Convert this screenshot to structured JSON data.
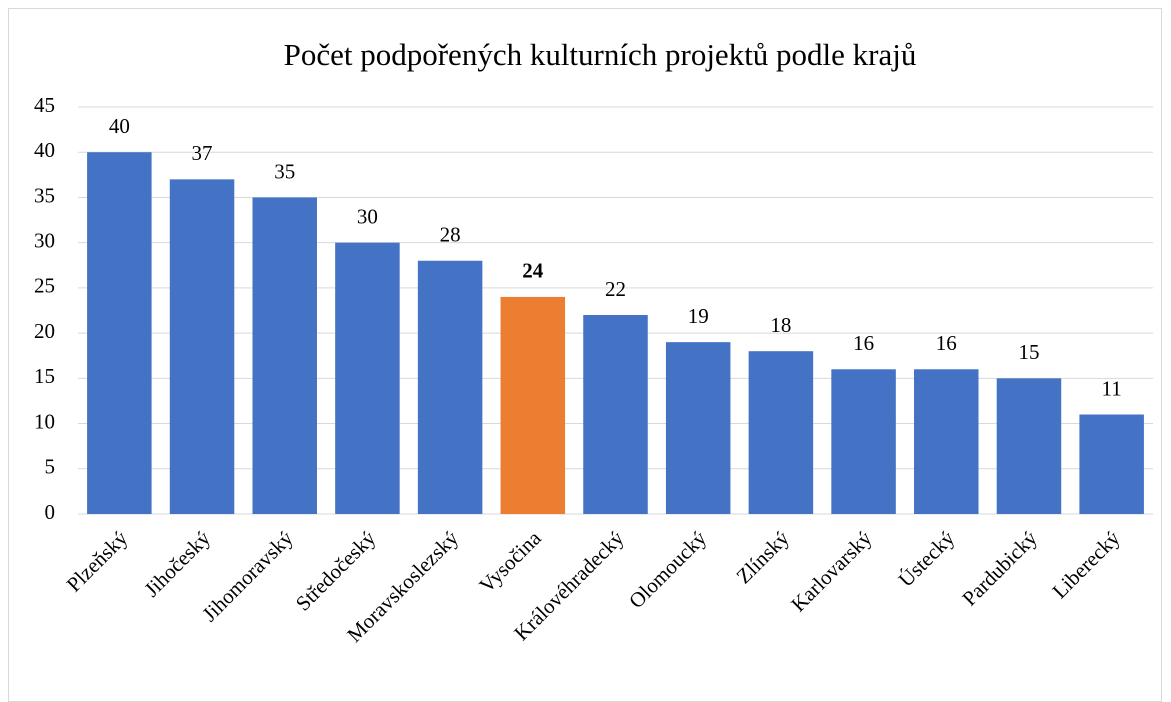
{
  "chart_data": {
    "type": "bar",
    "title": "Počet podpořených kulturních projektů podle krajů",
    "categories": [
      "Plzeňský",
      "Jihočeský",
      "Jihomoravský",
      "Středočeský",
      "Moravskoslezský",
      "Vysočina",
      "Královéhradecký",
      "Olomoucký",
      "Zlínský",
      "Karlovarský",
      "Ústecký",
      "Pardubický",
      "Liberecký"
    ],
    "values": [
      40,
      37,
      35,
      30,
      28,
      24,
      22,
      19,
      18,
      16,
      16,
      15,
      11
    ],
    "colors": [
      "#4472c4",
      "#4472c4",
      "#4472c4",
      "#4472c4",
      "#4472c4",
      "#ed7d31",
      "#4472c4",
      "#4472c4",
      "#4472c4",
      "#4472c4",
      "#4472c4",
      "#4472c4",
      "#4472c4"
    ],
    "bold_label_color": "#ed7d31",
    "ylim": [
      0,
      45
    ],
    "yticks": [
      0,
      5,
      10,
      15,
      20,
      25,
      30,
      35,
      40,
      45
    ],
    "grid": true
  }
}
